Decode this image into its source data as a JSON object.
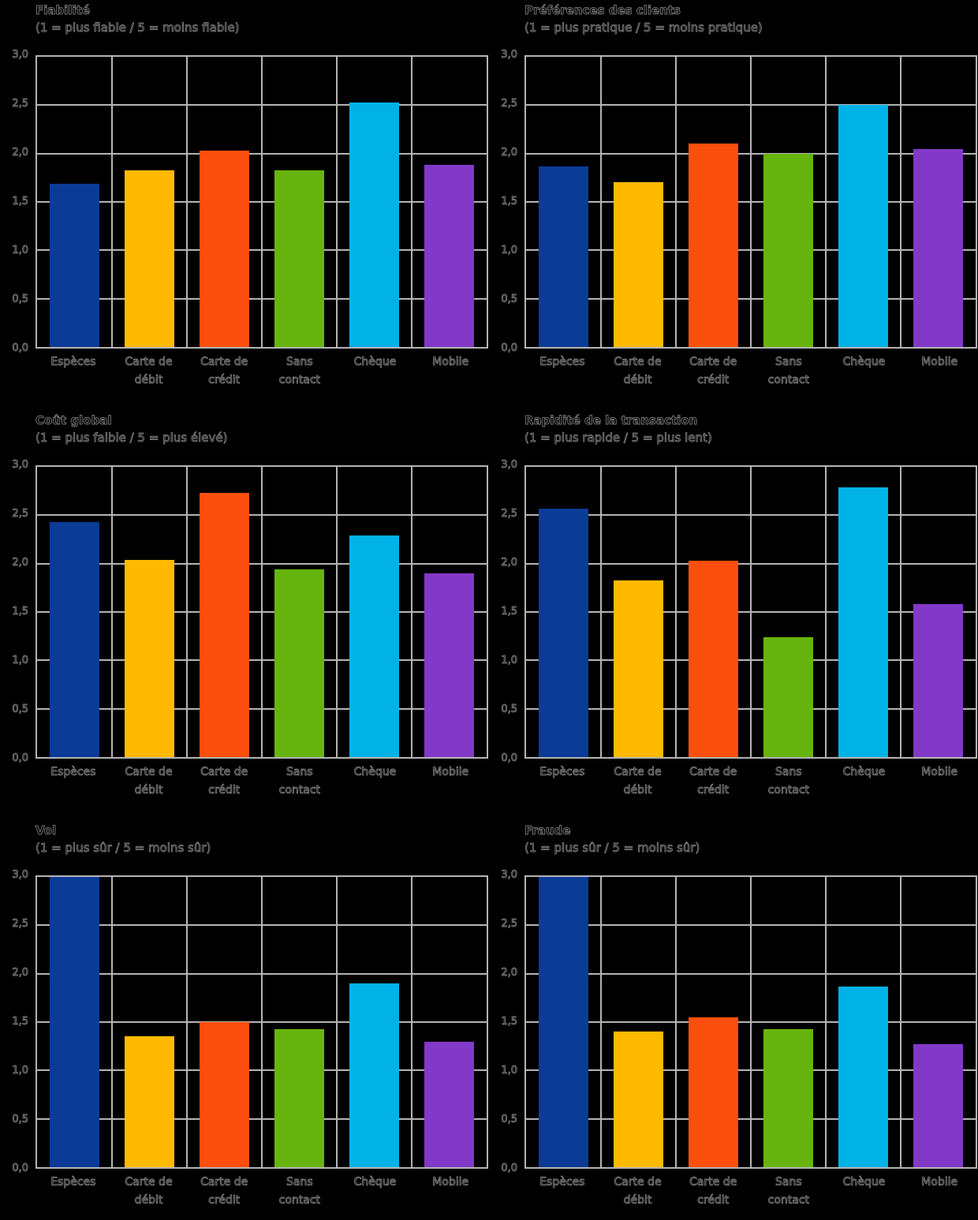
{
  "figure": {
    "background": "#000000",
    "grid_color": "#b4b4b4",
    "text_appearance": "faint-outline-on-black",
    "layout": "2 columns x 3 rows of bar charts"
  },
  "chart_data": {
    "type": "bar",
    "categories": [
      "Espèces",
      "Carte de débit",
      "Carte de crédit",
      "Sans contact",
      "Chèque",
      "Mobile"
    ],
    "categories_multiline": [
      [
        "Espèces"
      ],
      [
        "Carte de",
        "débit"
      ],
      [
        "Carte de",
        "crédit"
      ],
      [
        "Sans",
        "contact"
      ],
      [
        "Chèque"
      ],
      [
        "Mobile"
      ]
    ],
    "bar_colors": [
      "#0b3b96",
      "#ffba00",
      "#fc4e0c",
      "#68b40e",
      "#00b2e6",
      "#8239c8"
    ],
    "y_axis": {
      "min": 0,
      "max": 3,
      "step": 0.5,
      "tick_labels": [
        "0,0",
        "0,5",
        "1,0",
        "1,5",
        "2,0",
        "2,5",
        "3,0"
      ],
      "decimal_format": "comma",
      "grid": "on",
      "vertical_category_gridlines": "on"
    },
    "legend": "none",
    "charts": [
      {
        "title": "Fiabilité",
        "subtitle": "(1 = plus fiable / 5 = moins fiable)",
        "values": [
          1.69,
          1.83,
          2.03,
          1.83,
          2.53,
          1.88
        ]
      },
      {
        "title": "Préférences des clients",
        "subtitle": "(1 = plus pratique / 5 = moins pratique)",
        "values": [
          1.87,
          1.7,
          2.1,
          2.0,
          2.5,
          2.05
        ]
      },
      {
        "title": "Coût global",
        "subtitle": "(1 = plus faible / 5 = plus élevé)",
        "values": [
          2.43,
          2.04,
          2.73,
          1.94,
          2.29,
          1.9
        ]
      },
      {
        "title": "Rapidité de la transaction",
        "subtitle": "(1 = plus rapide / 5 = plus lent)",
        "values": [
          2.57,
          1.83,
          2.03,
          1.24,
          2.79,
          1.58
        ]
      },
      {
        "title": "Vol",
        "subtitle": "(1 = plus sûr / 5 = moins sûr)",
        "values": [
          3.0,
          1.35,
          1.5,
          1.43,
          1.9,
          1.3
        ]
      },
      {
        "title": "Fraude",
        "subtitle": "(1 = plus sûr / 5 = moins sûr)",
        "values": [
          3.0,
          1.4,
          1.55,
          1.43,
          1.87,
          1.27
        ]
      }
    ]
  }
}
